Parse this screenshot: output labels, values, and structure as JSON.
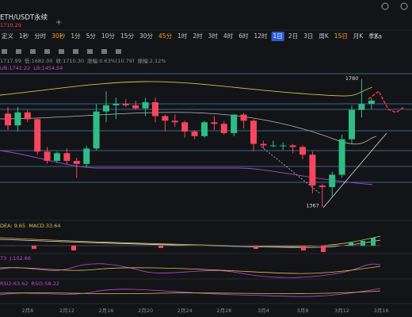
{
  "ui": {
    "tab": "ETH/USDT永续",
    "tab_price": "1710.29",
    "timeframes": [
      "定义",
      "1秒",
      "分时",
      "30秒",
      "1分",
      "5分",
      "10分",
      "15分",
      "30分",
      "45分",
      "1时",
      "2时",
      "3时",
      "4时",
      "6时",
      "12时",
      "1日",
      "2日",
      "3日",
      "周K",
      "15日",
      "月K",
      "季K"
    ],
    "active_index": 16,
    "highlight_indices": [
      3,
      9,
      20
    ],
    "right_label": "2a",
    "info": [
      "1717.99",
      "低:1682.00",
      "收:1710.30",
      "涨幅:0.63%(10.79)",
      "振幅:2.12%"
    ],
    "boll": [
      "UB:1741.22",
      "LB:1454.54"
    ],
    "macd": [
      "DEA: 9.65",
      "MACD:33.64"
    ],
    "kdj": [
      "73",
      "J:102.66"
    ],
    "rsi": [
      "RSI2:63.62",
      "RSI3:58.22"
    ]
  },
  "chart_data": {
    "type": "candlestick",
    "categories": [
      null,
      null,
      "2月8",
      null,
      null,
      null,
      "2月12",
      null,
      null,
      null,
      "2月16",
      null,
      null,
      null,
      "2月20",
      null,
      null,
      null,
      "2月24",
      null,
      null,
      null,
      "2月28",
      null,
      null,
      null,
      "3月4",
      null,
      null,
      null,
      "3月8",
      null,
      null,
      null,
      "3月12",
      null,
      null,
      null,
      "3月16"
    ],
    "open": [
      1668,
      1630,
      1672,
      1650,
      1545,
      1515,
      1540,
      1515,
      1505,
      1555,
      1675,
      1695,
      1700,
      1695,
      1685,
      1705,
      1660,
      1645,
      1640,
      1610,
      1595,
      1640,
      1635,
      1605,
      1665,
      1645,
      1570,
      1565,
      1565,
      1565,
      1560,
      1535,
      1435,
      1430,
      1470,
      1585,
      1680,
      1699.51,
      null
    ],
    "high": [
      1690,
      1690,
      1680,
      1655,
      1560,
      1545,
      1555,
      1525,
      1565,
      1700,
      1740,
      1720,
      1715,
      1710,
      1720,
      1720,
      1665,
      1665,
      1645,
      1615,
      1645,
      1660,
      1645,
      1665,
      1670,
      1650,
      1580,
      1580,
      1575,
      1570,
      1565,
      1545,
      1440,
      1480,
      1600,
      1695,
      1780,
      1717.99,
      null
    ],
    "low": [
      1615,
      1610,
      1640,
      1535,
      1505,
      1510,
      1505,
      1460,
      1495,
      1550,
      1640,
      1650,
      1690,
      1680,
      1660,
      1640,
      1610,
      1625,
      1590,
      1585,
      1590,
      1615,
      1600,
      1595,
      1620,
      1545,
      1555,
      1560,
      1550,
      1540,
      1520,
      1410,
      1367,
      1400,
      1460,
      1570,
      1655,
      1682.0,
      null
    ],
    "close": [
      1630,
      1672,
      1650,
      1545,
      1515,
      1540,
      1515,
      1505,
      1555,
      1675,
      1695,
      1700,
      1695,
      1685,
      1705,
      1660,
      1645,
      1640,
      1610,
      1595,
      1640,
      1635,
      1605,
      1665,
      1645,
      1570,
      1565,
      1565,
      1565,
      1560,
      1535,
      1435,
      1430,
      1470,
      1585,
      1680,
      1699.51,
      1710.3,
      null
    ],
    "up_color": "#2ebd85",
    "down_color": "#f6465d",
    "ylim": [
      1330,
      1800
    ],
    "annotations": [
      {
        "text": "1780"
      },
      {
        "text": "1367"
      }
    ]
  }
}
